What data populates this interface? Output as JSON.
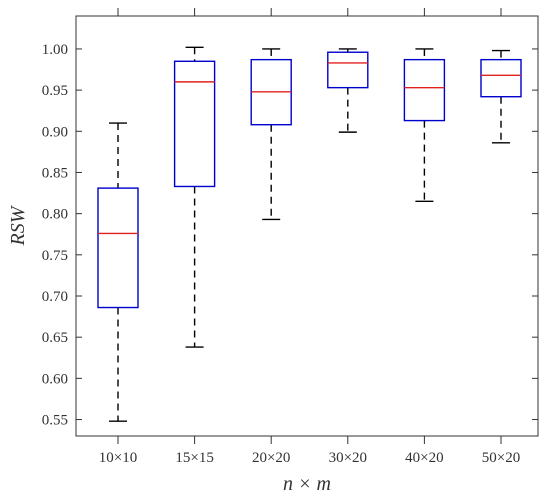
{
  "chart_data": {
    "type": "box",
    "title": "",
    "xlabel": "n × m",
    "ylabel": "RSW",
    "ylim": [
      0.53,
      1.04
    ],
    "yticks": [
      0.55,
      0.6,
      0.65,
      0.7,
      0.75,
      0.8,
      0.85,
      0.9,
      0.95,
      1.0
    ],
    "ytick_labels": [
      "0.55",
      "0.60",
      "0.65",
      "0.70",
      "0.75",
      "0.80",
      "0.85",
      "0.90",
      "0.95",
      "1.00"
    ],
    "categories": [
      "10×10",
      "15×15",
      "20×20",
      "30×20",
      "40×20",
      "50×20"
    ],
    "boxes": [
      {
        "whisker_low": 0.548,
        "q1": 0.686,
        "median": 0.776,
        "q3": 0.831,
        "whisker_high": 0.91
      },
      {
        "whisker_low": 0.638,
        "q1": 0.833,
        "median": 0.96,
        "q3": 0.985,
        "whisker_high": 1.002
      },
      {
        "whisker_low": 0.793,
        "q1": 0.908,
        "median": 0.948,
        "q3": 0.987,
        "whisker_high": 1.0
      },
      {
        "whisker_low": 0.899,
        "q1": 0.953,
        "median": 0.983,
        "q3": 0.996,
        "whisker_high": 1.0
      },
      {
        "whisker_low": 0.815,
        "q1": 0.913,
        "median": 0.953,
        "q3": 0.987,
        "whisker_high": 1.0
      },
      {
        "whisker_low": 0.886,
        "q1": 0.942,
        "median": 0.968,
        "q3": 0.987,
        "whisker_high": 0.998
      }
    ],
    "colors": {
      "box": "#0000cc",
      "median": "#e0201e",
      "whisker": "#000000",
      "axis": "#333333"
    },
    "grid": false
  }
}
